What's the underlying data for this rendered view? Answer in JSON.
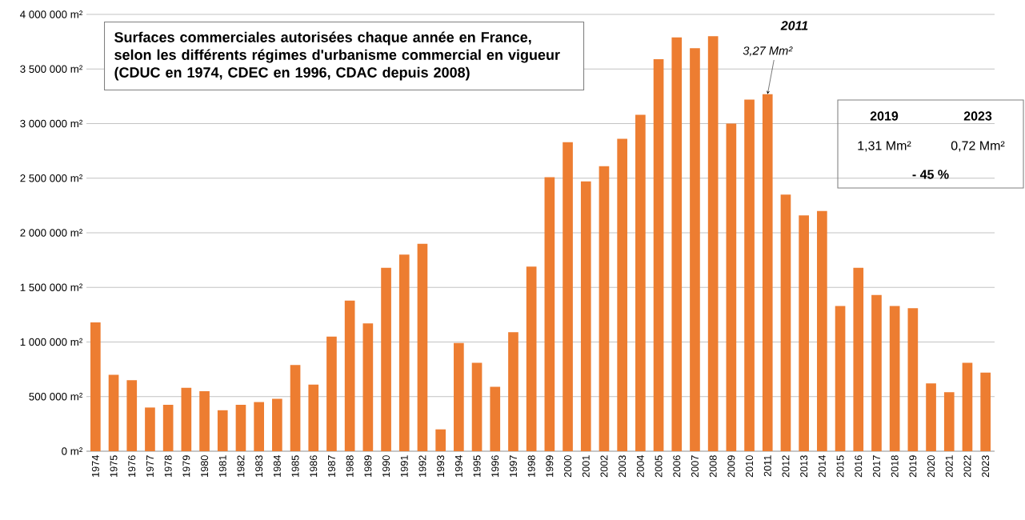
{
  "chart_data": {
    "type": "bar",
    "title": "Surfaces commerciales autorisées chaque année en France, selon les différents régimes d'urbanisme commercial en vigueur (CDUC en 1974, CDEC en 1996, CDAC depuis 2008)",
    "categories": [
      "1974",
      "1975",
      "1976",
      "1977",
      "1978",
      "1979",
      "1980",
      "1981",
      "1982",
      "1983",
      "1984",
      "1985",
      "1986",
      "1987",
      "1988",
      "1989",
      "1990",
      "1991",
      "1992",
      "1993",
      "1994",
      "1995",
      "1996",
      "1997",
      "1998",
      "1999",
      "2000",
      "2001",
      "2002",
      "2003",
      "2004",
      "2005",
      "2006",
      "2007",
      "2008",
      "2009",
      "2010",
      "2011",
      "2012",
      "2013",
      "2014",
      "2015",
      "2016",
      "2017",
      "2018",
      "2019",
      "2020",
      "2021",
      "2022",
      "2023"
    ],
    "values": [
      1180000,
      700000,
      650000,
      400000,
      425000,
      580000,
      550000,
      375000,
      425000,
      450000,
      480000,
      790000,
      610000,
      1050000,
      1380000,
      1170000,
      1680000,
      1800000,
      1900000,
      200000,
      990000,
      810000,
      590000,
      1090000,
      1690000,
      2510000,
      2830000,
      2470000,
      2610000,
      2860000,
      3080000,
      3590000,
      3790000,
      3690000,
      3800000,
      3000000,
      3220000,
      3270000,
      2350000,
      2160000,
      2200000,
      1330000,
      1680000,
      1430000,
      1330000,
      1310000,
      620000,
      540000,
      810000,
      720000
    ],
    "color": "#ed7d31",
    "ylim": [
      0,
      4000000
    ],
    "yticks": [
      {
        "value": 0,
        "label": "0 m²"
      },
      {
        "value": 500000,
        "label": "500 000 m²"
      },
      {
        "value": 1000000,
        "label": "1 000 000 m²"
      },
      {
        "value": 1500000,
        "label": "1 500 000 m²"
      },
      {
        "value": 2000000,
        "label": "2 000 000 m²"
      },
      {
        "value": 2500000,
        "label": "2 500 000 m²"
      },
      {
        "value": 3000000,
        "label": "3 000 000 m²"
      },
      {
        "value": 3500000,
        "label": "3 500 000 m²"
      },
      {
        "value": 4000000,
        "label": "4 000 000 m²"
      }
    ],
    "grid": "y",
    "annotations": [
      "2011",
      {
        "text": "3,27 Mm²",
        "x": "2011",
        "y": 3270000
      },
      "2019",
      "2023",
      "1,31 Mm²",
      "0,72 Mm²",
      "- 45 %"
    ]
  }
}
